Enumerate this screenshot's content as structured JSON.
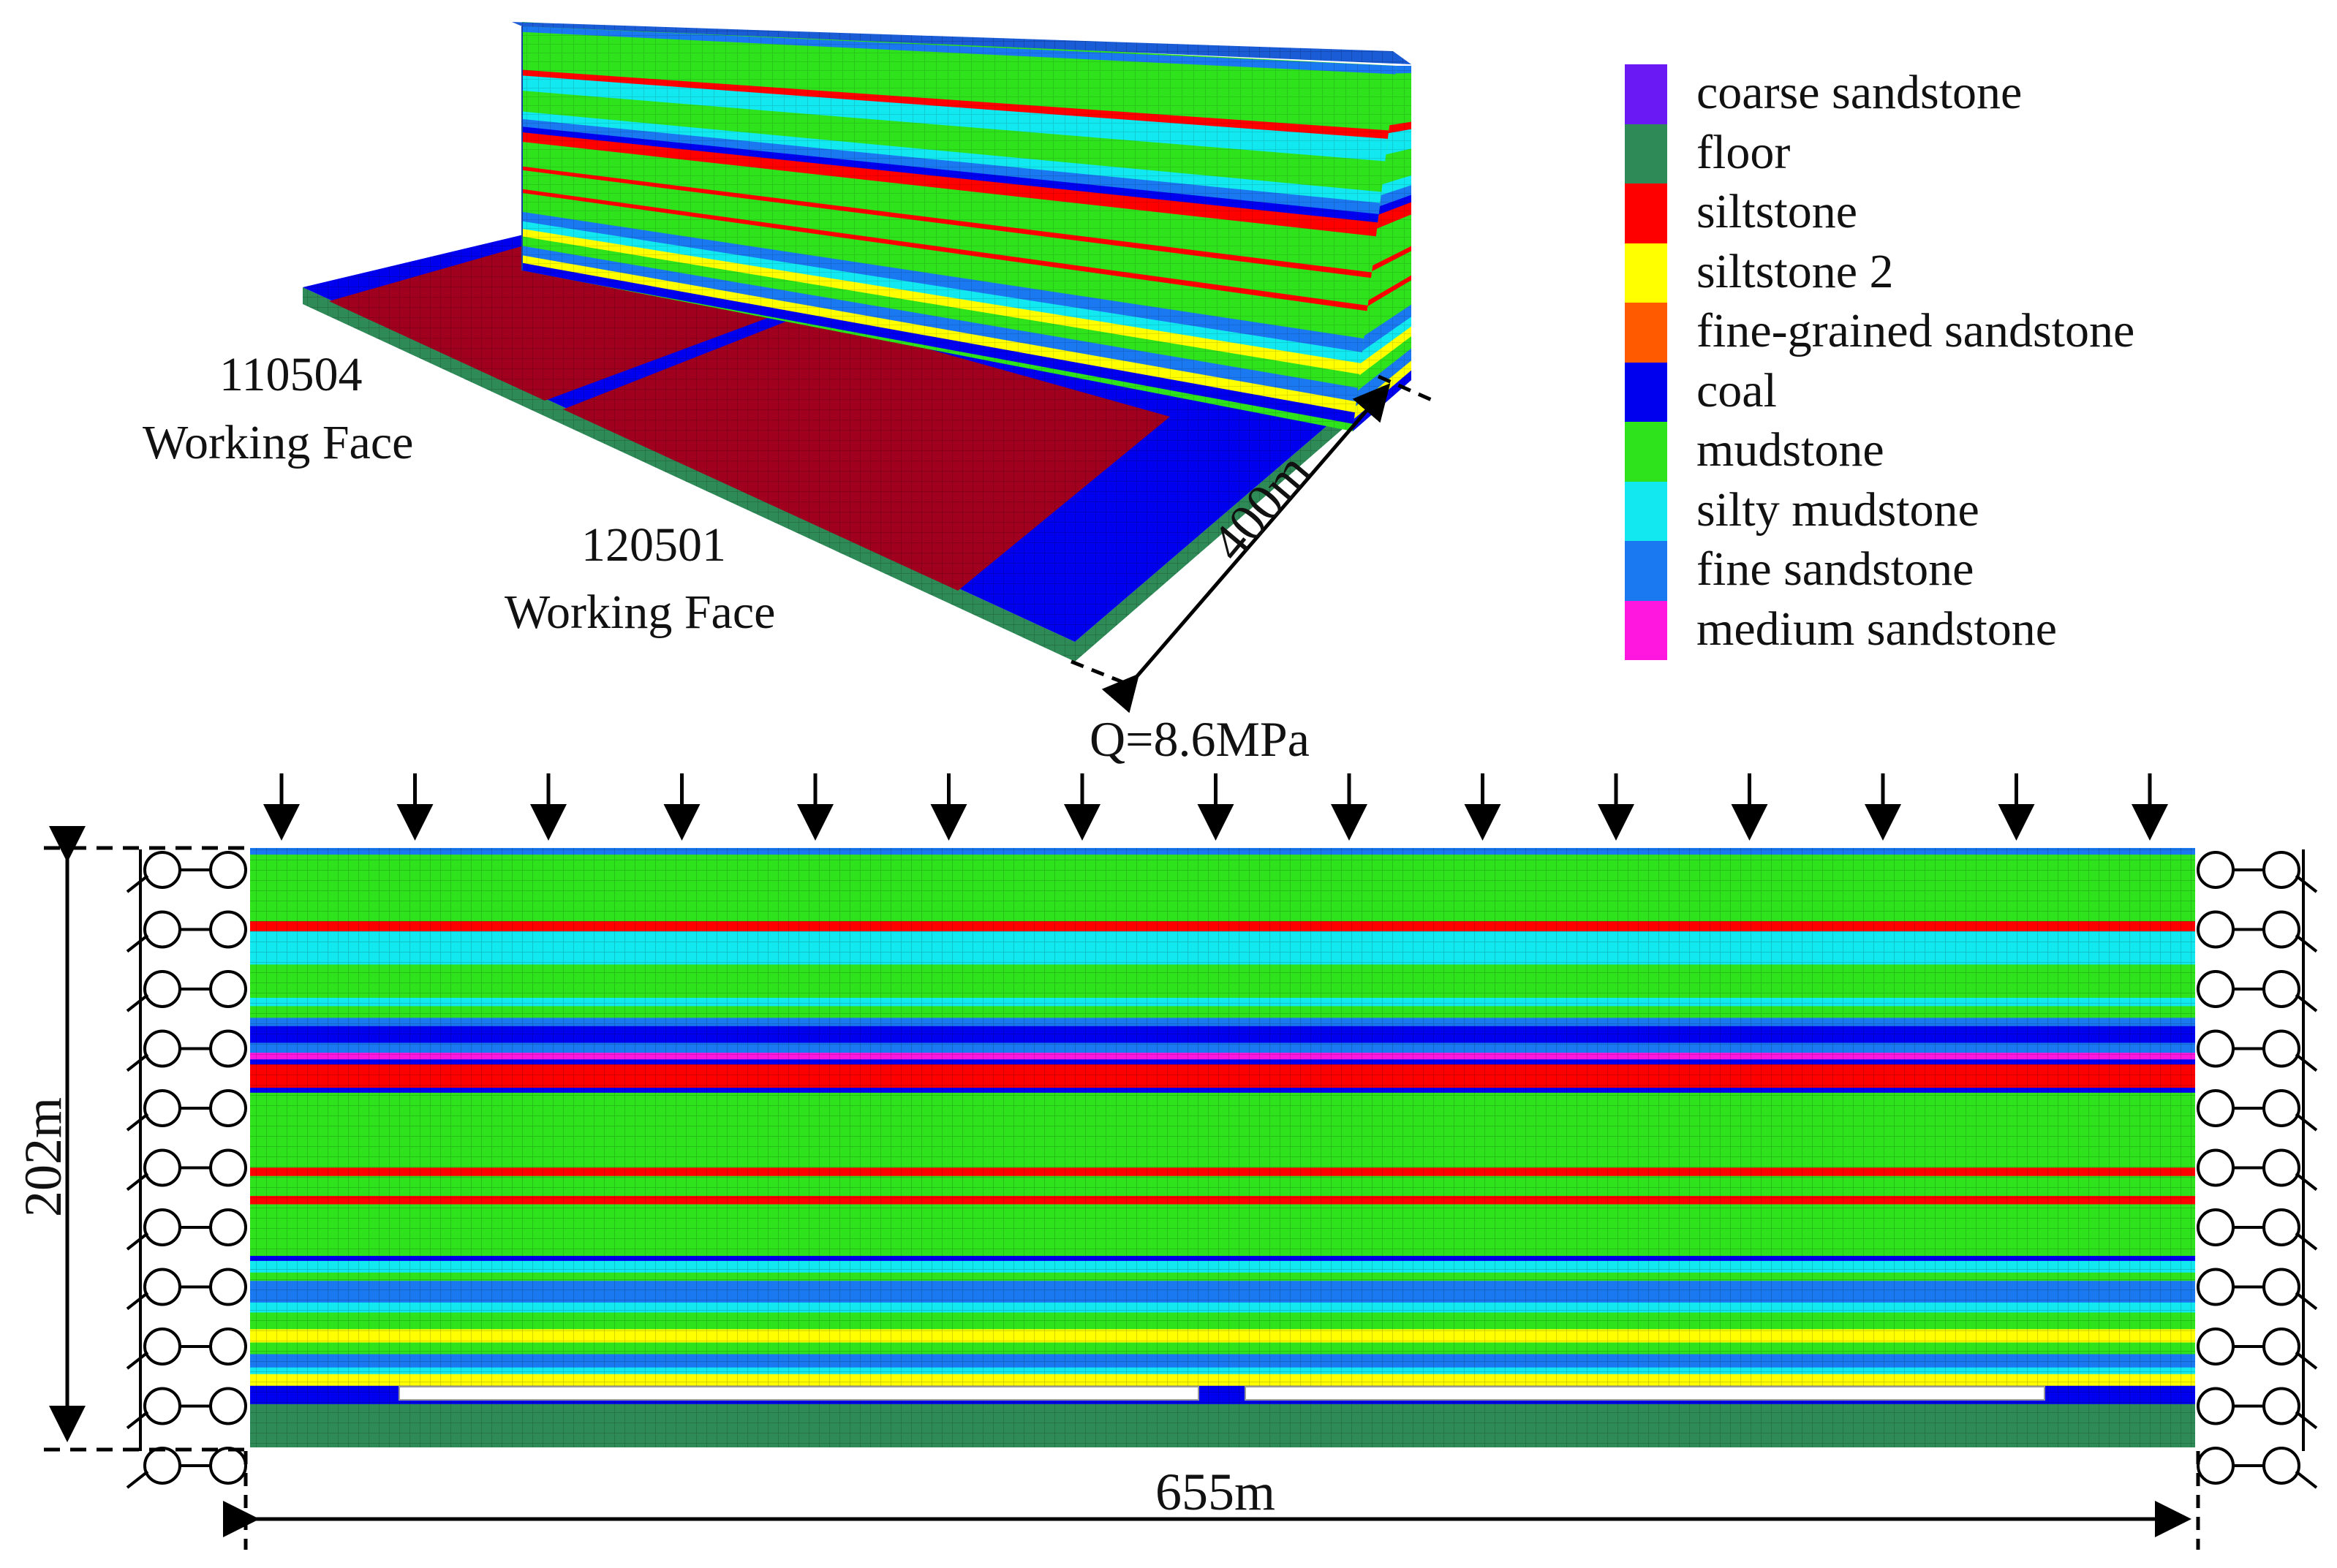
{
  "labels": {
    "face_110504_number": "110504",
    "face_110504_text": "Working Face",
    "face_120501_number": "120501",
    "face_120501_text": "Working Face",
    "width_dim": "400m",
    "load": "Q=8.6MPa",
    "height_dim": "202m",
    "length_dim": "655m"
  },
  "colors": {
    "coarse_sandstone": "#6a19f5",
    "floor": "#2e8b57",
    "siltstone": "#ff0000",
    "siltstone_2": "#ffff00",
    "fine_grained_sandstone": "#ff5a00",
    "coal": "#0000ee",
    "mudstone": "#2ee31c",
    "silty_mudstone": "#12e8f0",
    "fine_sandstone": "#1a78f0",
    "medium_sandstone": "#ff17e0",
    "goaf_red": "#a0001e"
  },
  "legend": [
    {
      "label": "coarse sandstone",
      "color": "#6a19f5"
    },
    {
      "label": "floor",
      "color": "#2e8b57"
    },
    {
      "label": "siltstone",
      "color": "#ff0000"
    },
    {
      "label": "siltstone 2",
      "color": "#ffff00"
    },
    {
      "label": "fine-grained sandstone",
      "color": "#ff5a00"
    },
    {
      "label": "coal",
      "color": "#0000ee"
    },
    {
      "label": "mudstone",
      "color": "#2ee31c"
    },
    {
      "label": "silty mudstone",
      "color": "#12e8f0"
    },
    {
      "label": "fine sandstone",
      "color": "#1a78f0"
    },
    {
      "label": "medium sandstone",
      "color": "#ff17e0"
    }
  ]
}
